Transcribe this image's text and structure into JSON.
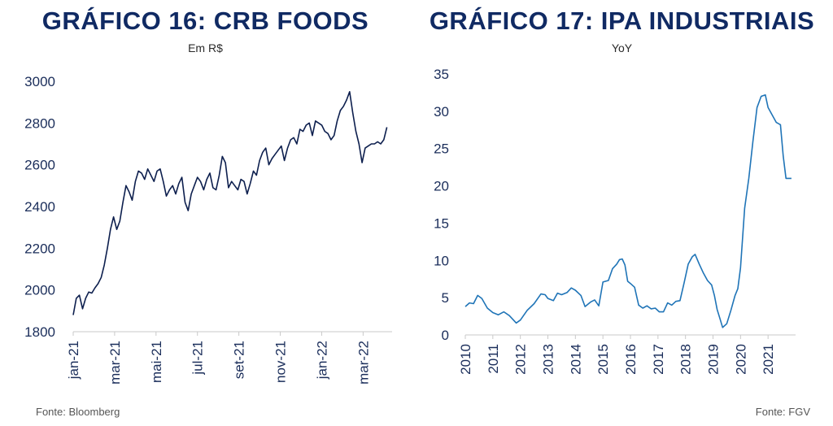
{
  "left": {
    "title": "GRÁFICO 16: CRB FOODS",
    "subtitle": "Em R$",
    "source": "Fonte: Bloomberg"
  },
  "right": {
    "title": "GRÁFICO 17: IPA INDUSTRIAIS",
    "subtitle": "YoY",
    "source": "Fonte: FGV"
  },
  "chart_data": [
    {
      "type": "line",
      "title": "GRÁFICO 16: CRB FOODS",
      "subtitle": "Em R$",
      "ylim": [
        1800,
        3000
      ],
      "yticks": [
        1800,
        2000,
        2200,
        2400,
        2600,
        2800,
        3000
      ],
      "xlim": [
        0,
        15.4
      ],
      "xtick_labels": [
        "jan-21",
        "mar-21",
        "mai-21",
        "jul-21",
        "set-21",
        "nov-21",
        "jan-22",
        "mar-22"
      ],
      "xtick_positions": [
        0,
        2,
        4,
        6,
        8,
        10,
        12,
        14
      ],
      "grid": false,
      "color": "#0d1f4e",
      "series": [
        {
          "x": [
            0,
            0.15,
            0.3,
            0.45,
            0.6,
            0.75,
            0.9,
            1.05,
            1.2,
            1.35,
            1.5,
            1.65,
            1.8,
            1.95,
            2.1,
            2.25,
            2.4,
            2.55,
            2.7,
            2.85,
            3.0,
            3.15,
            3.3,
            3.45,
            3.6,
            3.75,
            3.9,
            4.05,
            4.2,
            4.35,
            4.5,
            4.65,
            4.8,
            4.95,
            5.1,
            5.25,
            5.4,
            5.55,
            5.7,
            5.85,
            6.0,
            6.15,
            6.3,
            6.45,
            6.6,
            6.75,
            6.9,
            7.05,
            7.2,
            7.35,
            7.5,
            7.65,
            7.8,
            7.95,
            8.1,
            8.25,
            8.4,
            8.55,
            8.7,
            8.85,
            9.0,
            9.15,
            9.3,
            9.45,
            9.6,
            9.75,
            9.9,
            10.05,
            10.2,
            10.35,
            10.5,
            10.65,
            10.8,
            10.95,
            11.1,
            11.25,
            11.4,
            11.55,
            11.7,
            11.85,
            12.0,
            12.15,
            12.3,
            12.45,
            12.6,
            12.75,
            12.9,
            13.05,
            13.2,
            13.35,
            13.5,
            13.65,
            13.8,
            13.95,
            14.1,
            14.25,
            14.4,
            14.55,
            14.7,
            14.85,
            15.0,
            15.15
          ],
          "y": [
            1880,
            1960,
            1975,
            1910,
            1960,
            1990,
            1985,
            2010,
            2030,
            2060,
            2120,
            2200,
            2290,
            2350,
            2290,
            2330,
            2420,
            2500,
            2470,
            2430,
            2520,
            2570,
            2560,
            2530,
            2580,
            2550,
            2520,
            2570,
            2580,
            2520,
            2450,
            2480,
            2500,
            2460,
            2510,
            2540,
            2420,
            2380,
            2460,
            2500,
            2540,
            2520,
            2480,
            2530,
            2560,
            2490,
            2480,
            2550,
            2640,
            2610,
            2490,
            2520,
            2500,
            2480,
            2530,
            2520,
            2460,
            2510,
            2570,
            2550,
            2620,
            2660,
            2680,
            2600,
            2630,
            2650,
            2670,
            2690,
            2620,
            2680,
            2720,
            2730,
            2700,
            2770,
            2760,
            2790,
            2800,
            2740,
            2810,
            2800,
            2790,
            2760,
            2750,
            2720,
            2740,
            2810,
            2860,
            2880,
            2910,
            2950,
            2850,
            2760,
            2700,
            2610,
            2680,
            2690,
            2700,
            2700,
            2710,
            2700,
            2720,
            2780
          ]
        }
      ]
    },
    {
      "type": "line",
      "title": "GRÁFICO 17: IPA INDUSTRIAIS",
      "subtitle": "YoY",
      "ylim": [
        0,
        35
      ],
      "yticks": [
        0,
        5,
        10,
        15,
        20,
        25,
        30,
        35
      ],
      "xlim": [
        2010,
        2022
      ],
      "xtick_labels": [
        "2010",
        "2011",
        "2012",
        "2013",
        "2014",
        "2015",
        "2016",
        "2017",
        "2018",
        "2019",
        "2020",
        "2021"
      ],
      "xtick_positions": [
        2010,
        2011,
        2012,
        2013,
        2014,
        2015,
        2016,
        2017,
        2018,
        2019,
        2020,
        2021
      ],
      "grid": false,
      "color": "#1f74b7",
      "series": [
        {
          "x": [
            2010.0,
            2010.15,
            2010.3,
            2010.45,
            2010.6,
            2010.8,
            2011.0,
            2011.2,
            2011.4,
            2011.6,
            2011.85,
            2012.0,
            2012.25,
            2012.5,
            2012.75,
            2012.9,
            2013.0,
            2013.2,
            2013.35,
            2013.5,
            2013.7,
            2013.85,
            2014.0,
            2014.2,
            2014.35,
            2014.55,
            2014.7,
            2014.85,
            2015.0,
            2015.2,
            2015.35,
            2015.5,
            2015.6,
            2015.7,
            2015.8,
            2015.9,
            2016.0,
            2016.15,
            2016.3,
            2016.45,
            2016.6,
            2016.75,
            2016.9,
            2017.05,
            2017.2,
            2017.35,
            2017.5,
            2017.65,
            2017.8,
            2017.95,
            2018.1,
            2018.25,
            2018.35,
            2018.5,
            2018.65,
            2018.8,
            2018.95,
            2019.05,
            2019.15,
            2019.25,
            2019.35,
            2019.5,
            2019.65,
            2019.8,
            2019.9,
            2020.0,
            2020.15,
            2020.3,
            2020.45,
            2020.6,
            2020.75,
            2020.9,
            2021.0,
            2021.15,
            2021.3,
            2021.45,
            2021.55,
            2021.65,
            2021.75,
            2021.85
          ],
          "y": [
            3.8,
            4.3,
            4.2,
            5.3,
            4.9,
            3.6,
            3.0,
            2.7,
            3.1,
            2.6,
            1.6,
            2.0,
            3.3,
            4.2,
            5.5,
            5.4,
            4.9,
            4.6,
            5.6,
            5.4,
            5.7,
            6.3,
            6.0,
            5.3,
            3.8,
            4.4,
            4.7,
            3.9,
            7.1,
            7.3,
            8.9,
            9.5,
            10.1,
            10.2,
            9.4,
            7.2,
            6.9,
            6.4,
            4.0,
            3.6,
            3.9,
            3.5,
            3.6,
            3.1,
            3.1,
            4.3,
            4.0,
            4.5,
            4.6,
            7.0,
            9.5,
            10.5,
            10.8,
            9.5,
            8.3,
            7.3,
            6.7,
            5.3,
            3.4,
            2.2,
            1.0,
            1.5,
            3.3,
            5.3,
            6.2,
            9.0,
            17.0,
            21.0,
            26.0,
            30.5,
            32.0,
            32.2,
            30.5,
            29.5,
            28.5,
            28.2,
            24.0,
            21.0,
            21.0,
            21.0
          ]
        }
      ]
    }
  ]
}
